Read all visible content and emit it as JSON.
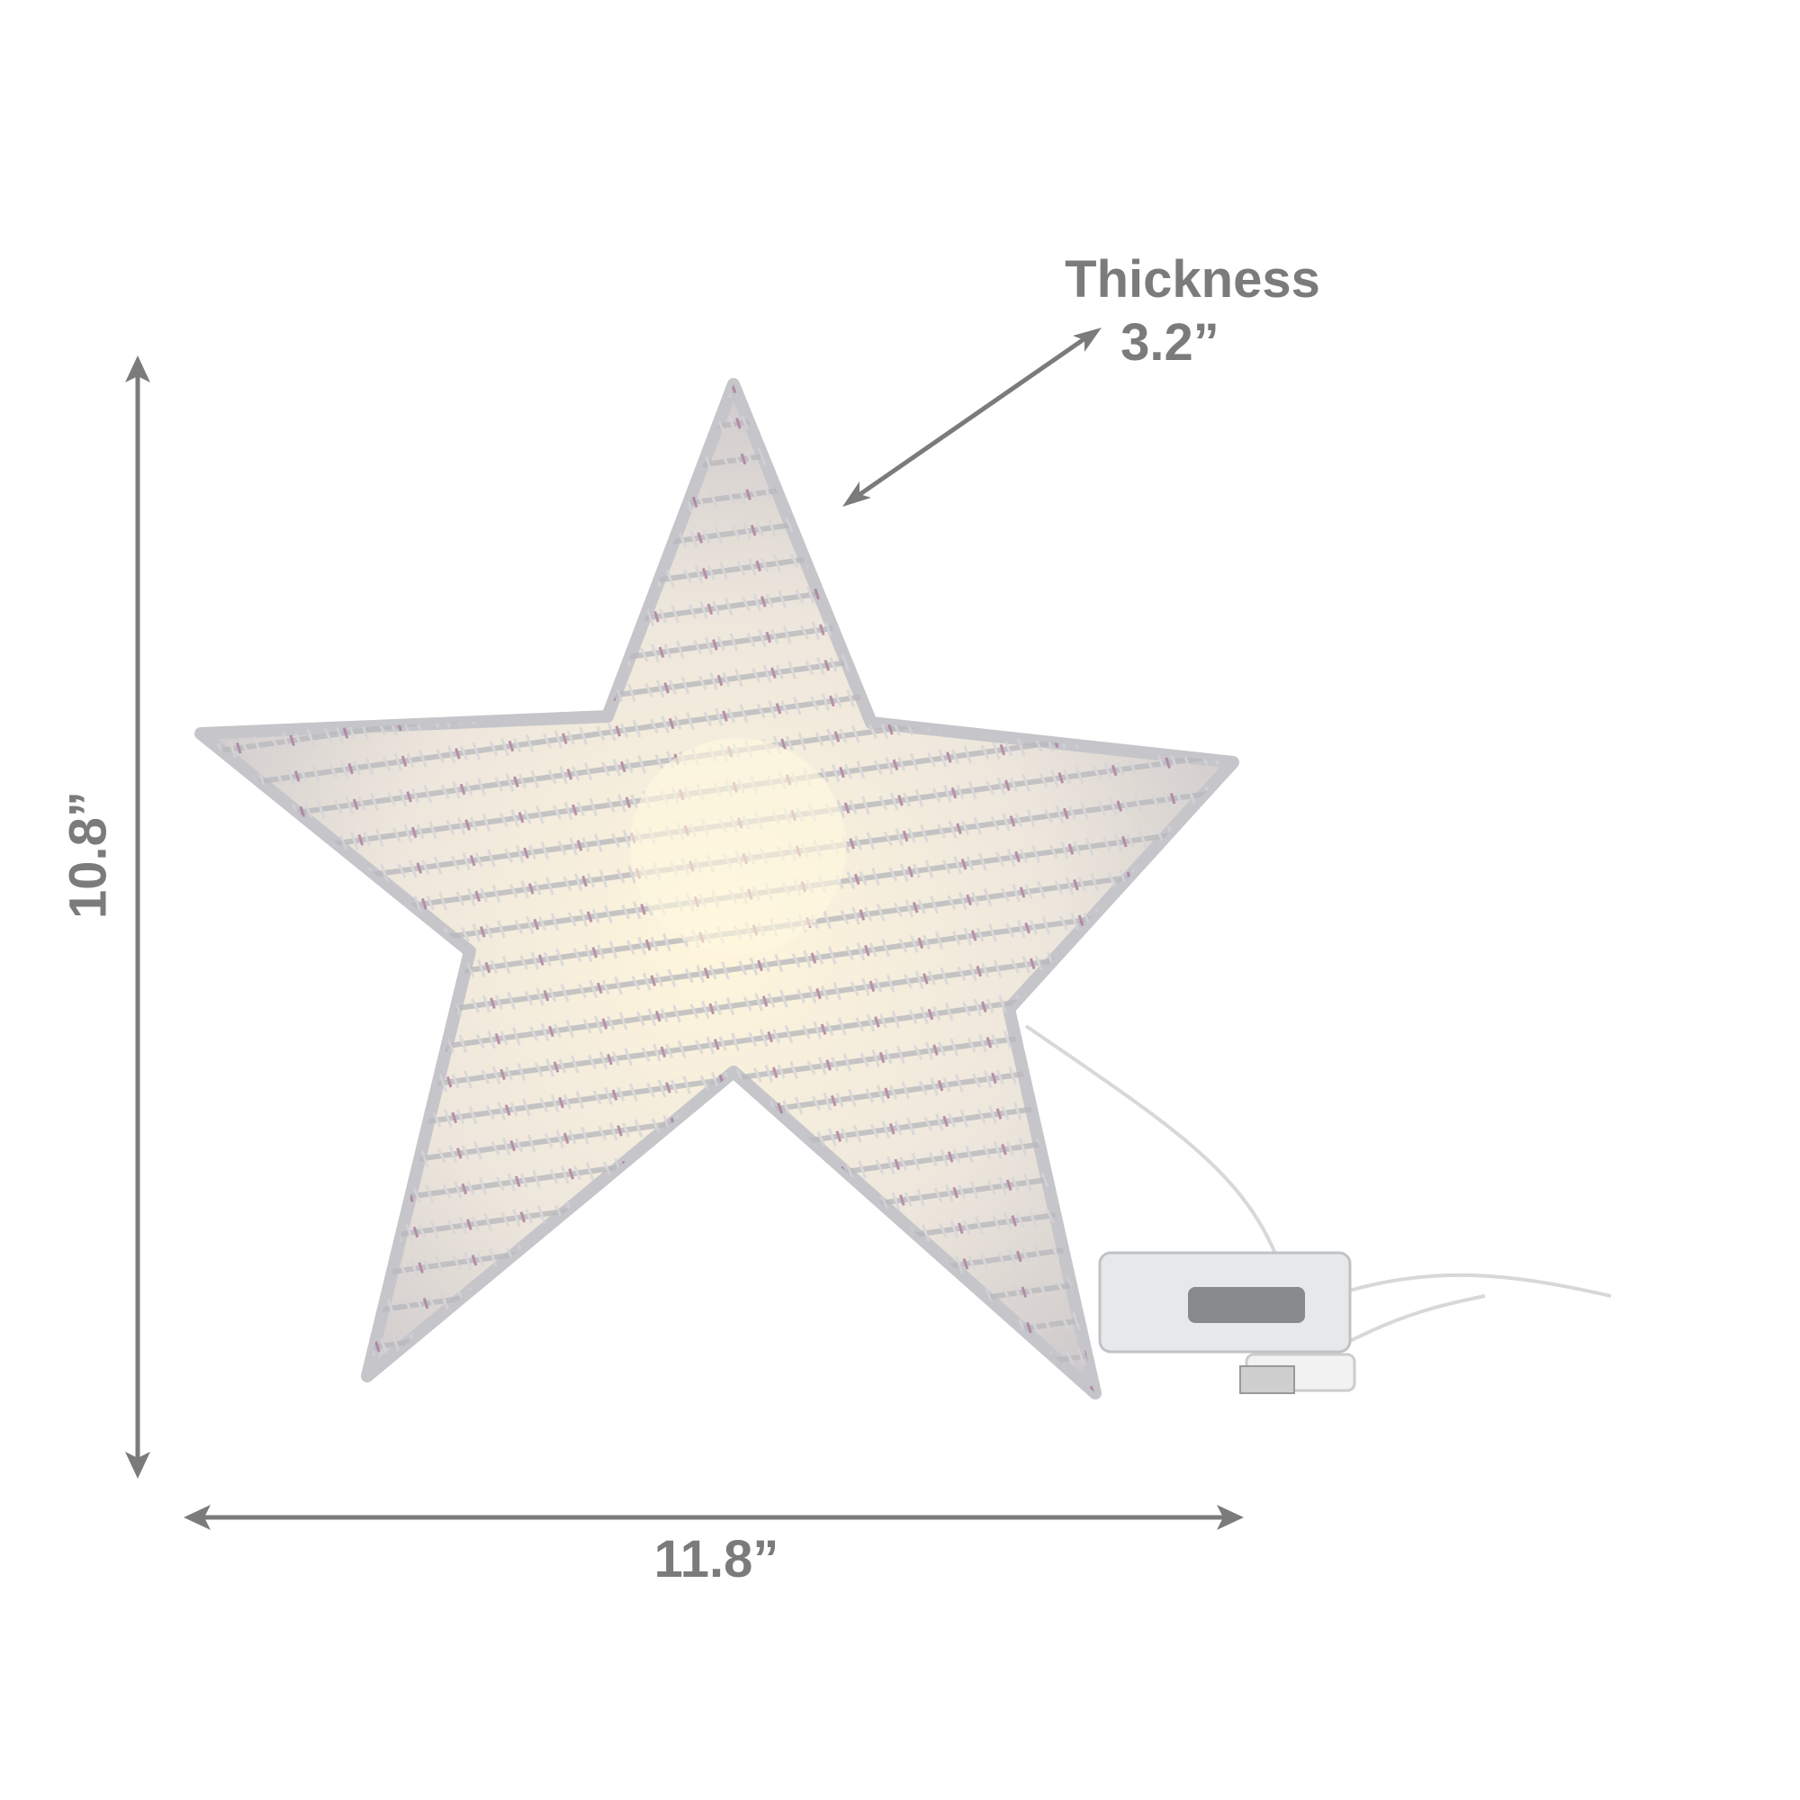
{
  "dimensions": {
    "height": "10.8”",
    "width": "11.8”",
    "thickness_label": "Thickness",
    "thickness": "3.2”"
  }
}
